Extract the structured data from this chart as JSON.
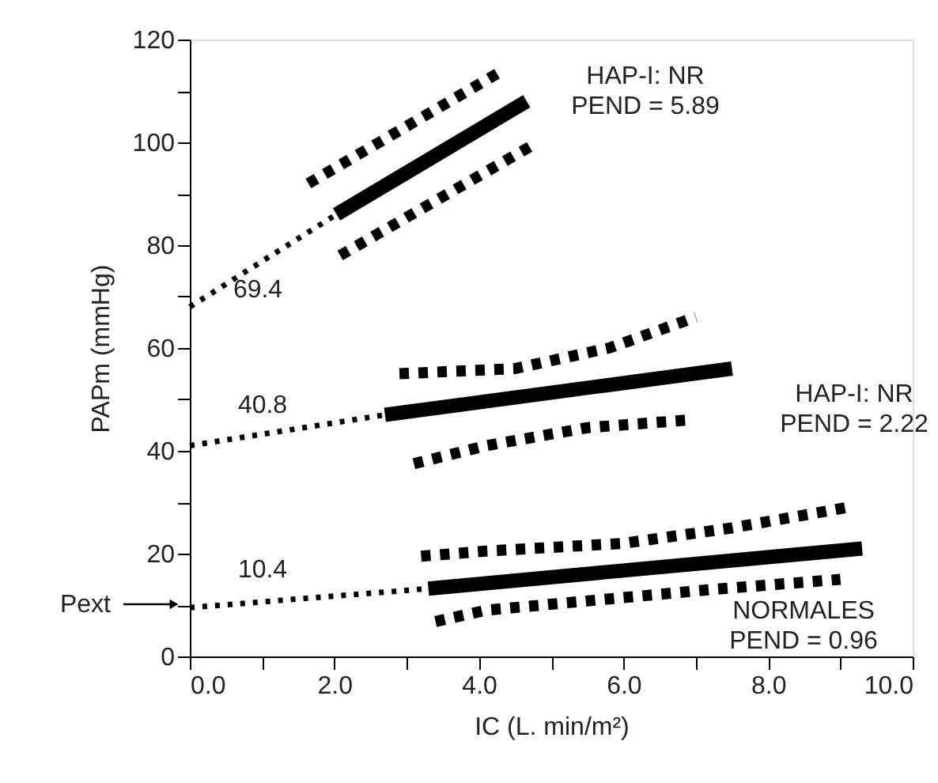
{
  "chart_data": {
    "type": "line",
    "xlabel": "IC (L. min/m²)",
    "ylabel": "PAPm (mmHg)",
    "xlim": [
      0,
      10
    ],
    "ylim": [
      0,
      120
    ],
    "xticks": [
      {
        "value": 0,
        "label": "0.0"
      },
      {
        "value": 1,
        "label": null
      },
      {
        "value": 2,
        "label": "2.0"
      },
      {
        "value": 3,
        "label": null
      },
      {
        "value": 4,
        "label": "4.0"
      },
      {
        "value": 5,
        "label": null
      },
      {
        "value": 6,
        "label": "6.0"
      },
      {
        "value": 7,
        "label": null
      },
      {
        "value": 8,
        "label": "8.0"
      },
      {
        "value": 9,
        "label": null
      },
      {
        "value": 10,
        "label": "10.0"
      }
    ],
    "yticks": [
      0,
      {
        "value": 10,
        "label": null
      },
      20,
      {
        "value": 30,
        "label": null
      },
      40,
      {
        "value": 50,
        "label": null
      },
      60,
      {
        "value": 70,
        "label": null
      },
      80,
      {
        "value": 90,
        "label": null
      },
      100,
      {
        "value": 110,
        "label": null
      },
      120
    ],
    "grid": false,
    "series": [
      {
        "line_style": "dotted",
        "color": "#000000",
        "x": [
          0,
          2.03
        ],
        "values": [
          68,
          86
        ]
      },
      {
        "line_style": "solid",
        "color": "#000000",
        "x": [
          2.03,
          4.66
        ],
        "values": [
          86,
          108
        ]
      },
      {
        "line_style": "dashed",
        "color": "#000000",
        "x": [
          1.64,
          4.33
        ],
        "values": [
          92,
          114
        ]
      },
      {
        "line_style": "dashed",
        "color": "#000000",
        "x": [
          2.08,
          4.81
        ],
        "values": [
          78,
          100
        ]
      },
      {
        "line_style": "dotted",
        "color": "#000000",
        "x": [
          0,
          2.7
        ],
        "values": [
          41,
          47
        ]
      },
      {
        "line_style": "solid",
        "color": "#000000",
        "x": [
          2.7,
          7.5
        ],
        "values": [
          47,
          56
        ]
      },
      {
        "line_style": "dashed",
        "color": "#000000",
        "x": [
          2.9,
          4.5,
          5.8,
          7.0
        ],
        "values": [
          55,
          56,
          60,
          66
        ]
      },
      {
        "line_style": "dashed",
        "color": "#000000",
        "x": [
          3.1,
          4.1,
          5.5,
          6.9
        ],
        "values": [
          37.5,
          41,
          44.5,
          46
        ]
      },
      {
        "line_style": "dotted",
        "color": "#000000",
        "x": [
          0,
          3.3
        ],
        "values": [
          9.5,
          13.2
        ]
      },
      {
        "line_style": "solid",
        "color": "#000000",
        "x": [
          3.3,
          9.3
        ],
        "values": [
          13.2,
          21
        ]
      },
      {
        "line_style": "dashed",
        "color": "#000000",
        "x": [
          3.2,
          4.1,
          6.0,
          7.5,
          9.1
        ],
        "values": [
          19.5,
          20.5,
          22,
          25,
          29
        ]
      },
      {
        "line_style": "dashed",
        "color": "#000000",
        "x": [
          3.4,
          4.1,
          7.2,
          9.0
        ],
        "values": [
          6.8,
          9,
          13,
          15
        ]
      }
    ],
    "annotations": [
      "HAP-I: NR\nPEND = 5.89",
      "69.4",
      "40.8",
      "HAP-I: NR\nPEND = 2.22",
      "10.4",
      "NORMALES\nPEND = 0.96",
      "Pext"
    ]
  }
}
